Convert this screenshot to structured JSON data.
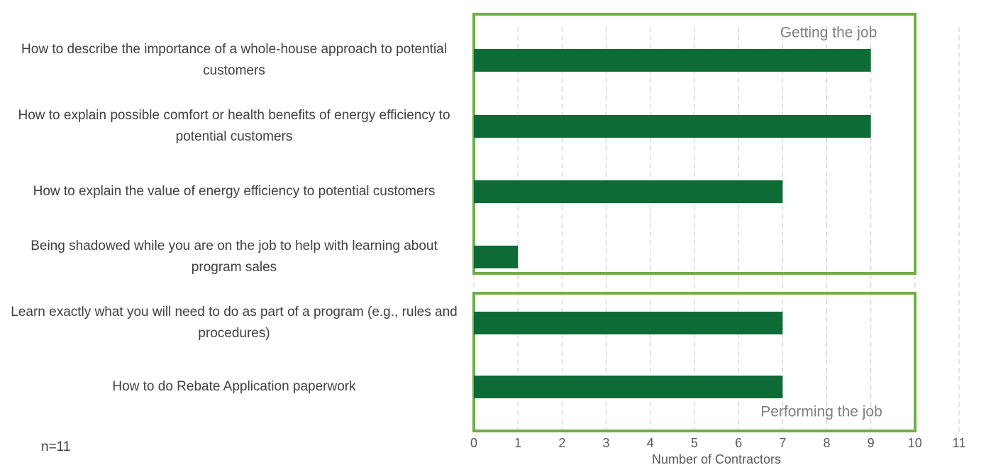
{
  "chart_data": {
    "type": "bar",
    "orientation": "horizontal",
    "categories": [
      "How to describe the importance of a whole-house approach to potential customers",
      "How to explain possible comfort or health benefits of energy efficiency to potential customers",
      "How to explain the value of energy efficiency to potential customers",
      "Being shadowed while you are on the job to help with learning about program sales",
      "Learn exactly what you will need to do as part of a program (e.g., rules and procedures)",
      "How to do Rebate Application paperwork"
    ],
    "values": [
      9,
      9,
      7,
      1,
      7,
      7
    ],
    "color": "#0e6b35",
    "xlabel": "Number of Contractors",
    "xlim": [
      0,
      11
    ],
    "xticks": [
      0,
      1,
      2,
      3,
      4,
      5,
      6,
      7,
      8,
      9,
      10,
      11
    ],
    "grid": true,
    "annotations": [
      "Getting the job",
      "Performing the job",
      "n=11"
    ]
  }
}
